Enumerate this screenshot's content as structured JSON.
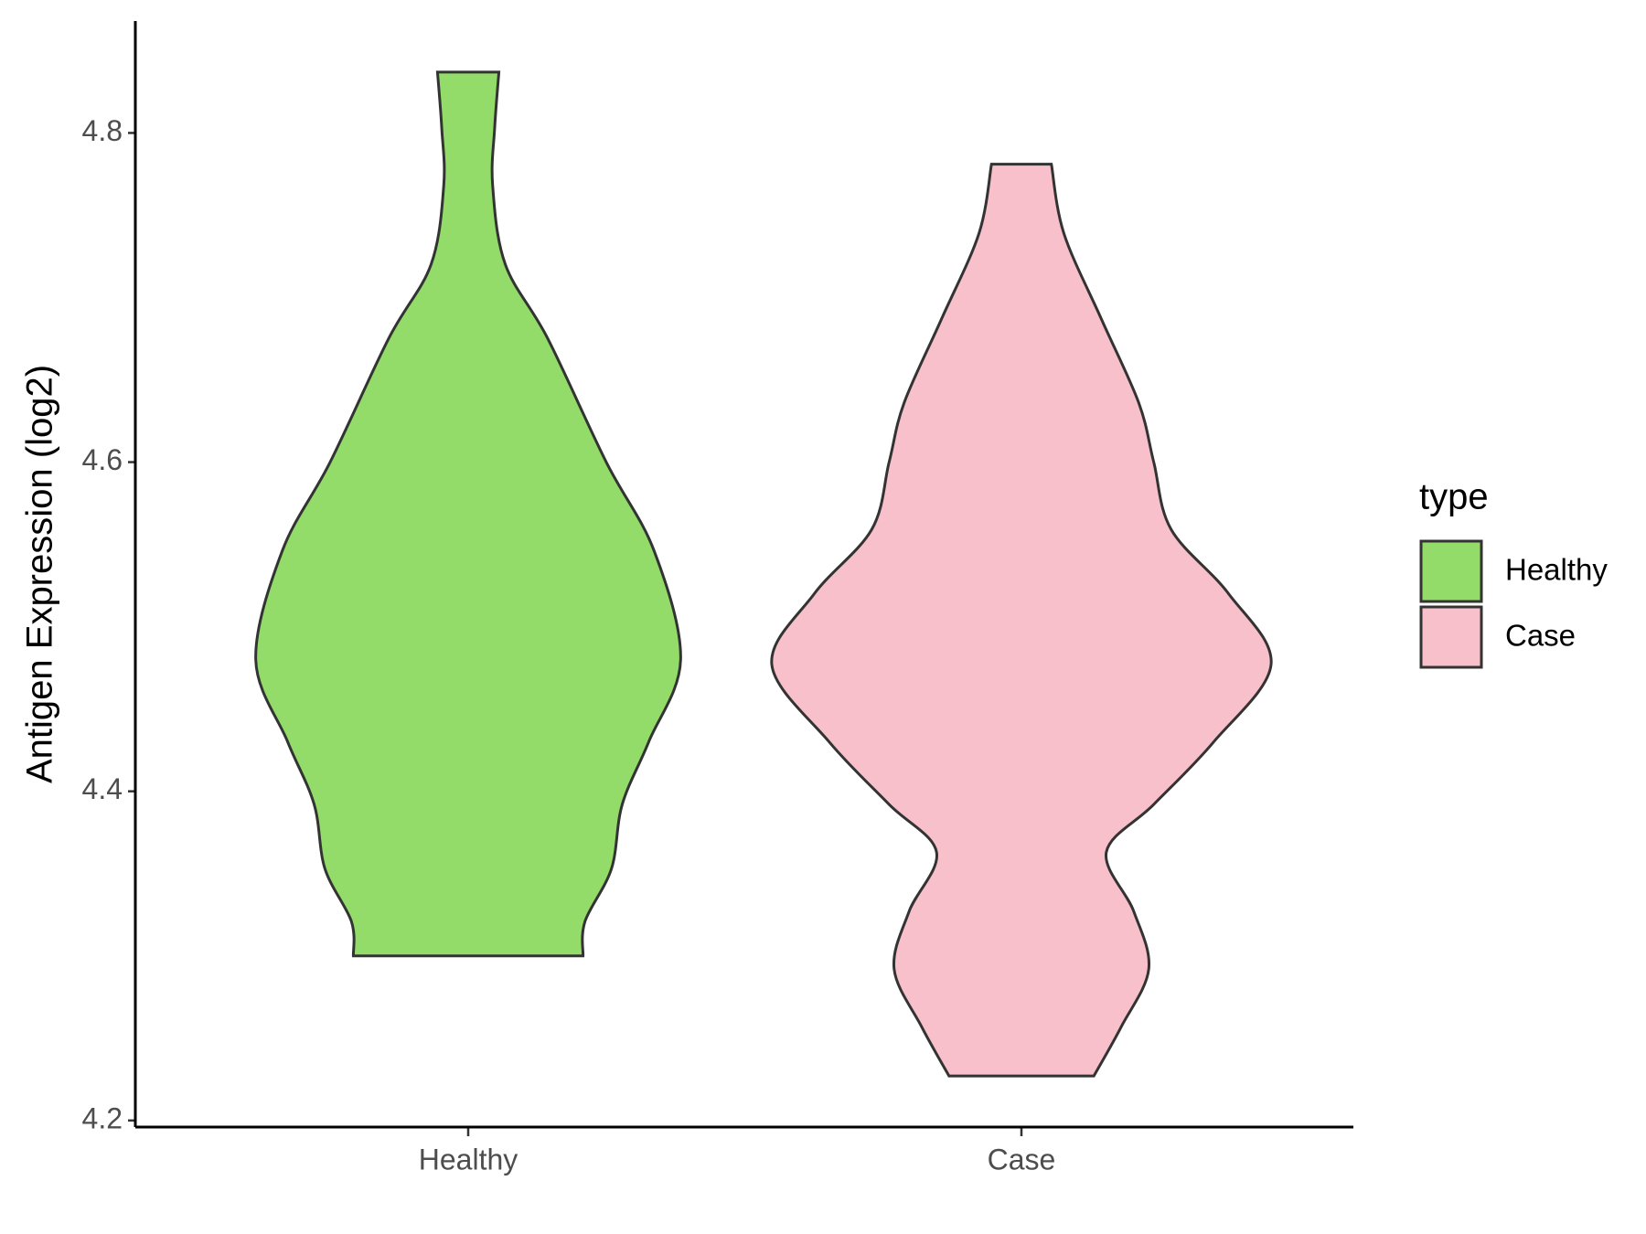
{
  "chart_data": {
    "type": "violin",
    "y_label": "Antigen Expression (log2)",
    "legend_title": "type",
    "categories": [
      "Healthy",
      "Case"
    ],
    "ylim": [
      4.196,
      4.868
    ],
    "yticks": [
      4.2,
      4.4,
      4.6,
      4.8
    ],
    "series": [
      {
        "name": "Healthy",
        "color": "#93dc6a",
        "y": [
          4.837,
          4.803,
          4.768,
          4.72,
          4.675,
          4.6,
          4.546,
          4.48,
          4.43,
          4.392,
          4.353,
          4.321,
          4.3
        ],
        "density": [
          0.123,
          0.106,
          0.098,
          0.149,
          0.319,
          0.553,
          0.745,
          0.851,
          0.723,
          0.617,
          0.574,
          0.468,
          0.46
        ]
      },
      {
        "name": "Case",
        "color": "#f8c0cb",
        "y": [
          4.781,
          4.739,
          4.687,
          4.636,
          4.6,
          4.559,
          4.52,
          4.477,
          4.43,
          4.392,
          4.363,
          4.327,
          4.292,
          4.257,
          4.227
        ],
        "density": [
          0.12,
          0.17,
          0.32,
          0.47,
          0.53,
          0.6,
          0.83,
          1,
          0.77,
          0.53,
          0.34,
          0.45,
          0.51,
          0.4,
          0.29
        ]
      }
    ],
    "legend_position": "right"
  }
}
